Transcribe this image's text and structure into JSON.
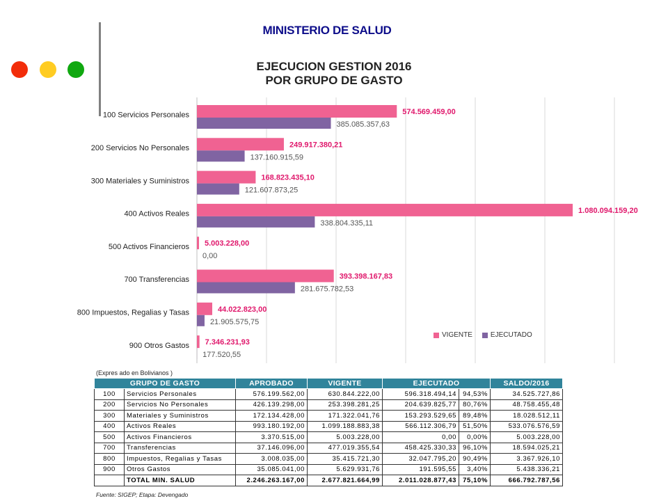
{
  "header": {
    "title": "MINISTERIO DE SALUD",
    "chart_title_line1": "EJECUCION GESTION 2016",
    "chart_title_line2": "POR GRUPO DE GASTO"
  },
  "decor": {
    "dot_colors": [
      "#f22d0a",
      "#ffcc22",
      "#10a810"
    ]
  },
  "colors": {
    "vigente": "#f06292",
    "ejecutado": "#8064a2",
    "vigente_label": "#e0186c",
    "header_bg": "#31849b"
  },
  "chart_data": {
    "type": "bar",
    "orientation": "horizontal",
    "categories": [
      "100 Servicios Personales",
      "200 Servicios No Personales",
      "300 Materiales y Suministros",
      "400 Activos Reales",
      "500 Activos Financieros",
      "700 Transferencias",
      "800 Impuestos, Regalias y Tasas",
      "900 Otros Gastos"
    ],
    "series": [
      {
        "name": "VIGENTE",
        "values": [
          574569459.0,
          249917380.21,
          168823435.1,
          1080094159.2,
          5003228.0,
          393398167.83,
          44022823.0,
          7346231.93
        ],
        "labels": [
          "574.569.459,00",
          "249.917.380,21",
          "168.823.435,10",
          "1.080.094.159,20",
          "5.003.228,00",
          "393.398.167,83",
          "44.022.823,00",
          "7.346.231,93"
        ]
      },
      {
        "name": "EJECUTADO",
        "values": [
          385085357.63,
          137160915.59,
          121607873.25,
          338804335.11,
          0.0,
          281675782.53,
          21905575.75,
          177520.55
        ],
        "labels": [
          "385.085.357,63",
          "137.160.915,59",
          "121.607.873,25",
          "338.804.335,11",
          "0,00",
          "281.675.782,53",
          "21.905.575,75",
          "177.520,55"
        ]
      }
    ],
    "xlim": [
      0,
      1200000000
    ],
    "grid": true,
    "legend_position": "bottom-right"
  },
  "table": {
    "note": "(Expres ado en Bolivianos )",
    "headers": [
      "GRUPO DE GASTO",
      "APROBADO",
      "VIGENTE",
      "EJECUTADO",
      "SALDO/2016"
    ],
    "rows": [
      {
        "code": "100",
        "name": "Servicios Personales",
        "aprobado": "576.199.562,00",
        "vigente": "630.844.222,00",
        "ejecutado": "596.318.494,14",
        "pct": "94,53%",
        "saldo": "34.525.727,86"
      },
      {
        "code": "200",
        "name": "Servicios No Personales",
        "aprobado": "426.139.298,00",
        "vigente": "253.398.281,25",
        "ejecutado": "204.639.825,77",
        "pct": "80,76%",
        "saldo": "48.758.455,48"
      },
      {
        "code": "300",
        "name": "Materiales y Suministros",
        "aprobado": "172.134.428,00",
        "vigente": "171.322.041,76",
        "ejecutado": "153.293.529,65",
        "pct": "89,48%",
        "saldo": "18.028.512,11"
      },
      {
        "code": "400",
        "name": "Activos Reales",
        "aprobado": "993.180.192,00",
        "vigente": "1.099.188.883,38",
        "ejecutado": "566.112.306,79",
        "pct": "51,50%",
        "saldo": "533.076.576,59"
      },
      {
        "code": "500",
        "name": "Activos Financieros",
        "aprobado": "3.370.515,00",
        "vigente": "5.003.228,00",
        "ejecutado": "0,00",
        "pct": "0,00%",
        "saldo": "5.003.228,00"
      },
      {
        "code": "700",
        "name": "Transferencias",
        "aprobado": "37.146.096,00",
        "vigente": "477.019.355,54",
        "ejecutado": "458.425.330,33",
        "pct": "96,10%",
        "saldo": "18.594.025,21"
      },
      {
        "code": "800",
        "name": "Impuestos, Regalias y Tasas",
        "aprobado": "3.008.035,00",
        "vigente": "35.415.721,30",
        "ejecutado": "32.047.795,20",
        "pct": "90,49%",
        "saldo": "3.367.926,10"
      },
      {
        "code": "900",
        "name": "Otros Gastos",
        "aprobado": "35.085.041,00",
        "vigente": "5.629.931,76",
        "ejecutado": "191.595,55",
        "pct": "3,40%",
        "saldo": "5.438.336,21"
      }
    ],
    "total": {
      "code": "",
      "name": "TOTAL MIN. SALUD",
      "aprobado": "2.246.263.167,00",
      "vigente": "2.677.821.664,99",
      "ejecutado": "2.011.028.877,43",
      "pct": "75,10%",
      "saldo": "666.792.787,56"
    },
    "source": "Fuente: SIGEP; Etapa: Devengado"
  }
}
